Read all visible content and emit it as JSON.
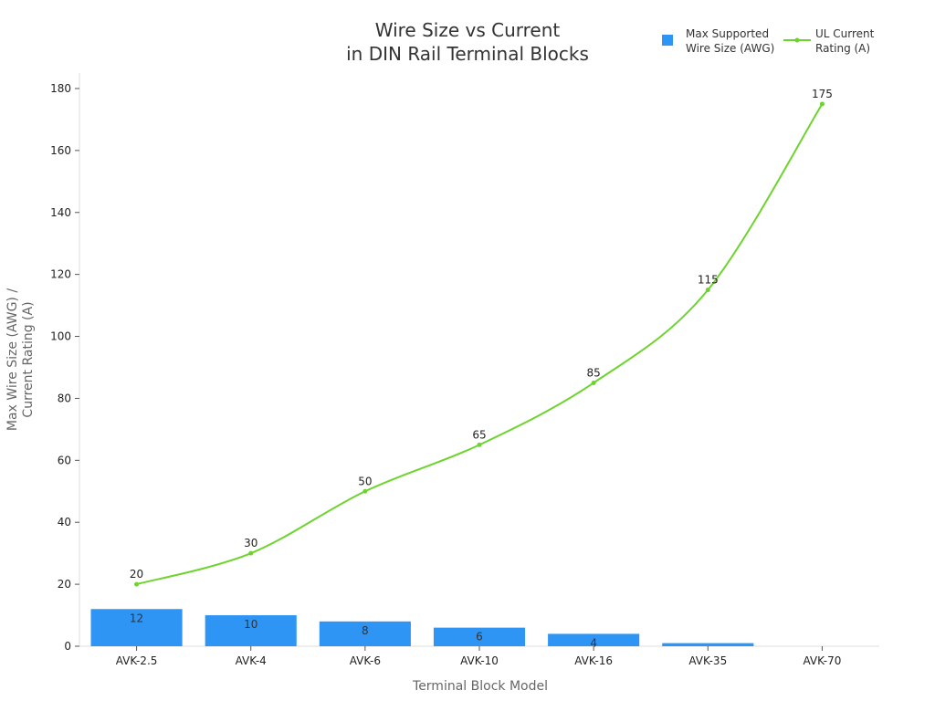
{
  "chart_data": {
    "type": "bar",
    "title_lines": [
      "Wire Size vs Current",
      "in DIN Rail Terminal Blocks"
    ],
    "xlabel": "Terminal Block Model",
    "ylabel_lines": [
      "Max Wire Size (AWG) /",
      "Current Rating (A)"
    ],
    "categories": [
      "AVK-2.5",
      "AVK-4",
      "AVK-6",
      "AVK-10",
      "AVK-16",
      "AVK-35",
      "AVK-70"
    ],
    "ylim": [
      0,
      185
    ],
    "yticks": [
      0,
      20,
      40,
      60,
      80,
      100,
      120,
      140,
      160,
      180
    ],
    "grid": false,
    "legend_position": "top-right",
    "series": [
      {
        "name": "Max Supported Wire Size (AWG)",
        "legend_lines": [
          "Max Supported",
          "Wire Size (AWG)"
        ],
        "type": "bar",
        "color": "#2e95f5",
        "values": [
          12,
          10,
          8,
          6,
          4,
          1,
          0
        ],
        "labels": [
          "12",
          "10",
          "8",
          "6",
          "4",
          "",
          ""
        ]
      },
      {
        "name": "UL Current Rating (A)",
        "legend_lines": [
          "UL Current",
          "Rating (A)"
        ],
        "type": "line",
        "color": "#6dd42e",
        "values": [
          20,
          30,
          50,
          65,
          85,
          115,
          175
        ],
        "labels": [
          "20",
          "30",
          "50",
          "65",
          "85",
          "115",
          "175"
        ]
      }
    ]
  }
}
